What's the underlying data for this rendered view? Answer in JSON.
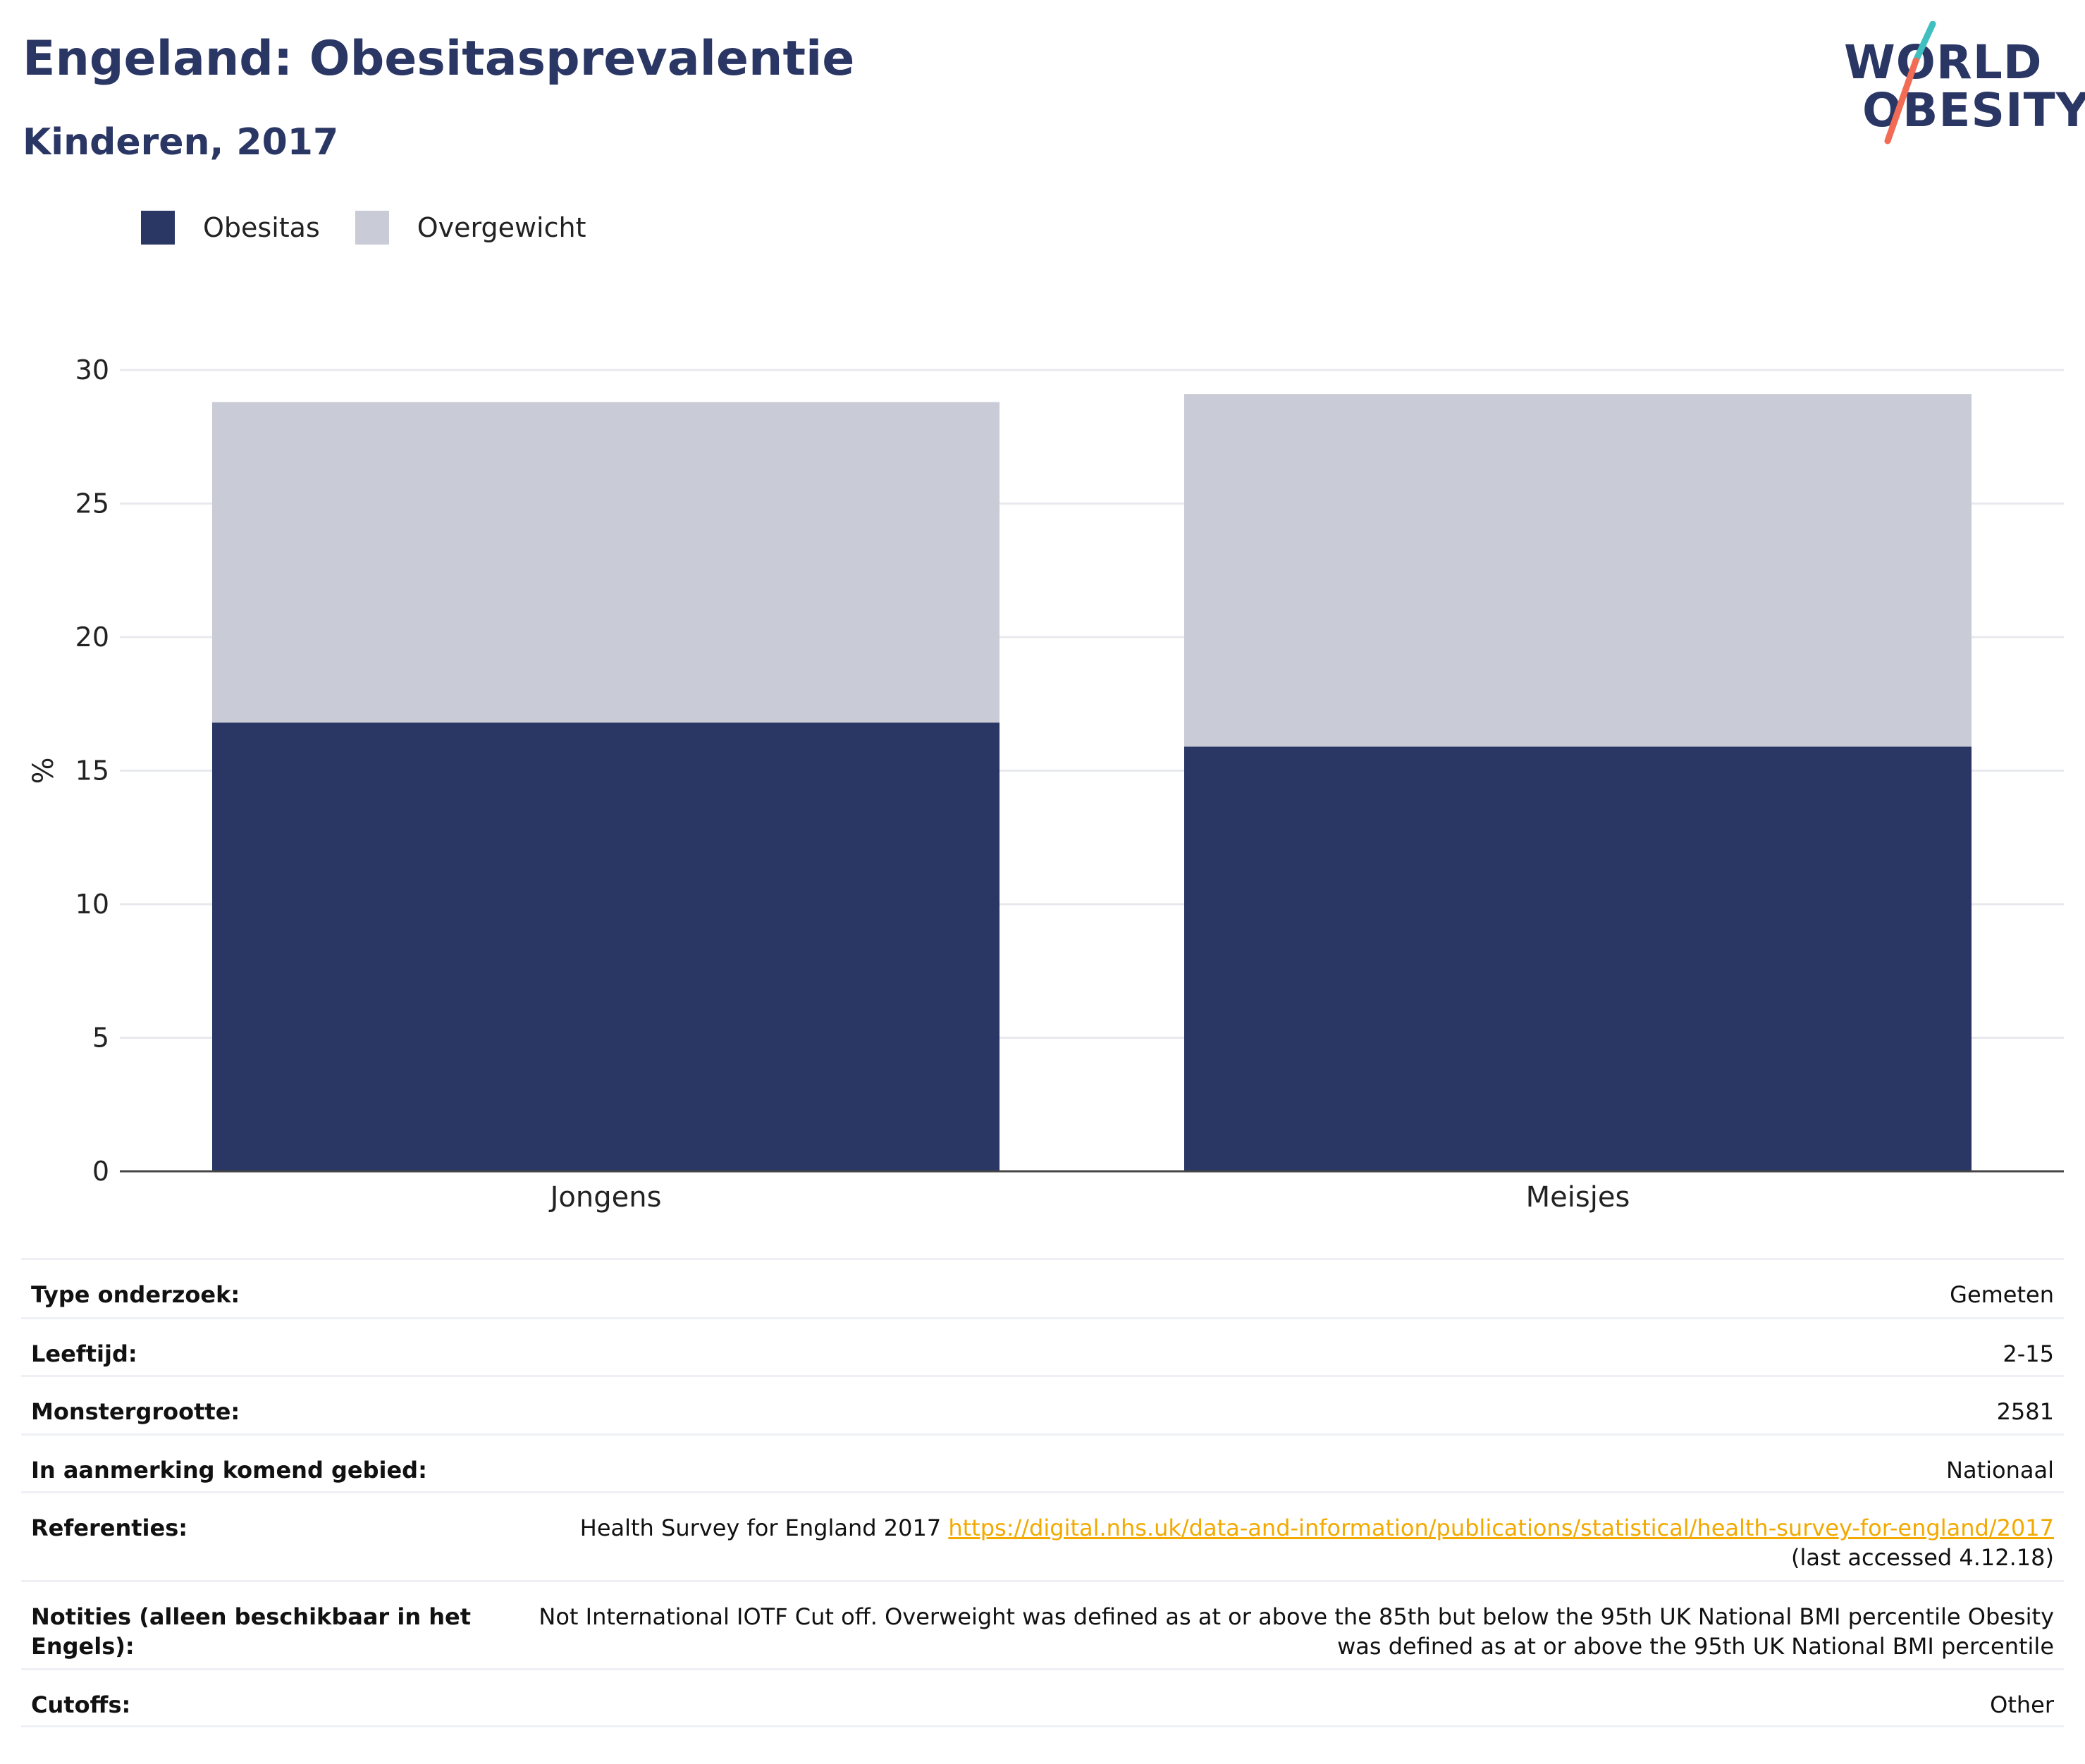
{
  "header": {
    "title": "Engeland: Obesitasprevalentie",
    "subtitle": "Kinderen, 2017"
  },
  "logo": {
    "line1": "WORLD",
    "line2": "OBESITY",
    "accent_teal": "#3fbfbf",
    "accent_coral": "#f26b55"
  },
  "legend": [
    {
      "label": "Obesitas",
      "color": "#2a3663"
    },
    {
      "label": "Overgewicht",
      "color": "#c9cbd6"
    }
  ],
  "chart_data": {
    "type": "bar",
    "stacked": true,
    "categories": [
      "Jongens",
      "Meisjes"
    ],
    "series": [
      {
        "name": "Obesitas",
        "values": [
          16.8,
          15.9
        ],
        "color": "#2a3663"
      },
      {
        "name": "Overgewicht",
        "values": [
          12.0,
          13.2
        ],
        "color": "#c9cbd6"
      }
    ],
    "ylabel": "%",
    "ylim": [
      0,
      30
    ],
    "yticks": [
      0,
      5,
      10,
      15,
      20,
      25,
      30
    ],
    "grid": true
  },
  "info": [
    {
      "label": "Type onderzoek:",
      "value": "Gemeten"
    },
    {
      "label": "Leeftijd:",
      "value": "2-15"
    },
    {
      "label": "Monstergrootte:",
      "value": "2581"
    },
    {
      "label": "In aanmerking komend gebied:",
      "value": "Nationaal"
    },
    {
      "label": "Referenties:",
      "value_prefix": "Health Survey for England 2017 ",
      "link": "https://digital.nhs.uk/data-and-information/publications/statistical/health-survey-for-england/2017",
      "value_suffix": "(last accessed 4.12.18)"
    },
    {
      "label": "Notities (alleen beschikbaar in het Engels):",
      "value": "Not International IOTF Cut off. Overweight was defined as at or above the 85th but below the 95th UK National BMI percentile Obesity was defined as at or above the 95th UK National BMI percentile"
    },
    {
      "label": "Cutoffs:",
      "value": "Other"
    }
  ]
}
